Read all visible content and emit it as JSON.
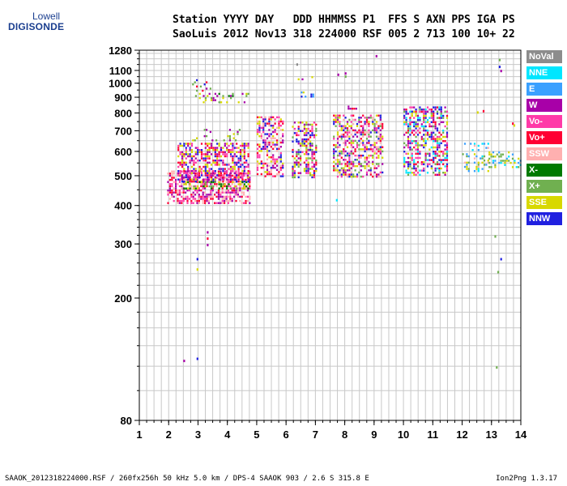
{
  "logo": {
    "top": "Lowell",
    "bottom": "DIGISONDE"
  },
  "header": {
    "line1": "Station YYYY DAY   DDD HHMMSS P1  FFS S AXN PPS IGA PS",
    "line2": "SaoLuis 2012 Nov13 318 224000 RSF 005 2 713 100 10+ 22"
  },
  "legend": [
    {
      "label": "NoVal",
      "bg": "#8c8c8c",
      "fg": "#ffffff"
    },
    {
      "label": "NNE",
      "bg": "#00e6ff",
      "fg": "#ffffff"
    },
    {
      "label": "E",
      "bg": "#3aa0ff",
      "fg": "#ffffff"
    },
    {
      "label": "W",
      "bg": "#a800a8",
      "fg": "#ffffff"
    },
    {
      "label": "Vo-",
      "bg": "#ff3aa8",
      "fg": "#ffffff"
    },
    {
      "label": "Vo+",
      "bg": "#ff0033",
      "fg": "#ffffff"
    },
    {
      "label": "SSW",
      "bg": "#ffb0b0",
      "fg": "#ffffff"
    },
    {
      "label": "X-",
      "bg": "#007a00",
      "fg": "#ffffff"
    },
    {
      "label": "X+",
      "bg": "#70b050",
      "fg": "#ffffff"
    },
    {
      "label": "SSE",
      "bg": "#d8d800",
      "fg": "#ffffff"
    },
    {
      "label": "NNW",
      "bg": "#2020e0",
      "fg": "#ffffff"
    }
  ],
  "footer": {
    "left": "SAAOK_2012318224000.RSF / 260fx256h 50 kHz 5.0 km / DPS-4 SAAOK 903 / 2.6 S 315.8 E",
    "right": "Ion2Png 1.3.17"
  },
  "chart_data": {
    "type": "scatter",
    "xlim": [
      1,
      14
    ],
    "ylim": [
      80,
      1280
    ],
    "y_scale": "log",
    "grid": true,
    "x_ticks": [
      1,
      2,
      3,
      4,
      5,
      6,
      7,
      8,
      9,
      10,
      11,
      12,
      13,
      14
    ],
    "y_ticks": [
      80,
      200,
      300,
      400,
      500,
      600,
      700,
      800,
      900,
      1000,
      1100,
      1280
    ],
    "clusters": [
      {
        "x": [
          1.95,
          4.75
        ],
        "y": [
          410,
          520
        ],
        "density": 1.0,
        "colors": [
          "Vo-",
          "Vo+",
          "SSW",
          "W"
        ]
      },
      {
        "x": [
          2.3,
          4.7
        ],
        "y": [
          480,
          640
        ],
        "density": 1.0,
        "colors": [
          "W",
          "Vo+",
          "Vo-",
          "NNW",
          "SSE"
        ]
      },
      {
        "x": [
          2.5,
          4.7
        ],
        "y": [
          455,
          480
        ],
        "density": 0.7,
        "colors": [
          "X-",
          "X+",
          "SSE"
        ]
      },
      {
        "x": [
          2.8,
          4.4
        ],
        "y": [
          650,
          710
        ],
        "density": 0.35,
        "colors": [
          "SSE",
          "W",
          "X+"
        ]
      },
      {
        "x": [
          2.8,
          3.5
        ],
        "y": [
          940,
          1080
        ],
        "density": 0.25,
        "colors": [
          "W",
          "NNW",
          "Vo+",
          "X+"
        ]
      },
      {
        "x": [
          2.9,
          4.8
        ],
        "y": [
          860,
          930
        ],
        "density": 0.4,
        "colors": [
          "X-",
          "SSE",
          "X+",
          "W"
        ]
      },
      {
        "x": [
          5.0,
          5.9
        ],
        "y": [
          500,
          780
        ],
        "density": 0.85,
        "colors": [
          "Vo+",
          "W",
          "Vo-",
          "SSE",
          "NNW",
          "SSW"
        ]
      },
      {
        "x": [
          6.2,
          7.05
        ],
        "y": [
          490,
          750
        ],
        "density": 0.85,
        "colors": [
          "Vo+",
          "W",
          "Vo-",
          "SSE",
          "X+",
          "NNW"
        ]
      },
      {
        "x": [
          6.5,
          7.0
        ],
        "y": [
          900,
          940
        ],
        "density": 0.5,
        "colors": [
          "NNW",
          "E",
          "SSE"
        ]
      },
      {
        "x": [
          6.4,
          7.0
        ],
        "y": [
          1030,
          1070
        ],
        "density": 0.3,
        "colors": [
          "SSE",
          "W"
        ]
      },
      {
        "x": [
          7.6,
          9.3
        ],
        "y": [
          495,
          790
        ],
        "density": 0.9,
        "colors": [
          "Vo+",
          "SSE",
          "W",
          "Vo-",
          "NNW",
          "X+",
          "SSW"
        ]
      },
      {
        "x": [
          7.9,
          8.4
        ],
        "y": [
          825,
          845
        ],
        "density": 0.5,
        "colors": [
          "W",
          "Vo+"
        ]
      },
      {
        "x": [
          10.0,
          11.5
        ],
        "y": [
          500,
          840
        ],
        "density": 0.85,
        "colors": [
          "Vo+",
          "W",
          "Vo-",
          "SSE",
          "NNE",
          "X+",
          "NNW"
        ]
      },
      {
        "x": [
          12.0,
          12.9
        ],
        "y": [
          520,
          640
        ],
        "density": 0.5,
        "colors": [
          "X+",
          "SSW",
          "NNE",
          "SSE",
          "E"
        ]
      },
      {
        "x": [
          12.9,
          14.0
        ],
        "y": [
          530,
          600
        ],
        "density": 0.45,
        "colors": [
          "SSE",
          "X+",
          "E",
          "NNE"
        ]
      }
    ],
    "scattered_points": [
      {
        "x": 2.95,
        "y": 270,
        "c": "NNW"
      },
      {
        "x": 2.95,
        "y": 250,
        "c": "SSE"
      },
      {
        "x": 3.3,
        "y": 330,
        "c": "W"
      },
      {
        "x": 3.3,
        "y": 315,
        "c": "Vo+"
      },
      {
        "x": 3.3,
        "y": 300,
        "c": "W"
      },
      {
        "x": 2.95,
        "y": 128,
        "c": "NNW"
      },
      {
        "x": 2.5,
        "y": 126,
        "c": "W"
      },
      {
        "x": 9.05,
        "y": 1235,
        "c": "W"
      },
      {
        "x": 13.25,
        "y": 1200,
        "c": "X+"
      },
      {
        "x": 13.25,
        "y": 1140,
        "c": "NNW"
      },
      {
        "x": 13.3,
        "y": 1105,
        "c": "W"
      },
      {
        "x": 13.1,
        "y": 320,
        "c": "X+"
      },
      {
        "x": 13.3,
        "y": 270,
        "c": "NNW"
      },
      {
        "x": 13.2,
        "y": 245,
        "c": "X+"
      },
      {
        "x": 13.15,
        "y": 120,
        "c": "X+"
      },
      {
        "x": 7.7,
        "y": 420,
        "c": "NNE"
      },
      {
        "x": 7.75,
        "y": 1075,
        "c": "W"
      },
      {
        "x": 8.0,
        "y": 1085,
        "c": "W"
      },
      {
        "x": 8.0,
        "y": 1060,
        "c": "X+"
      },
      {
        "x": 12.5,
        "y": 810,
        "c": "SSE"
      },
      {
        "x": 12.7,
        "y": 818,
        "c": "Vo+"
      },
      {
        "x": 13.7,
        "y": 745,
        "c": "Vo+"
      },
      {
        "x": 13.75,
        "y": 735,
        "c": "SSE"
      },
      {
        "x": 6.35,
        "y": 1160,
        "c": "NoVal"
      }
    ]
  }
}
